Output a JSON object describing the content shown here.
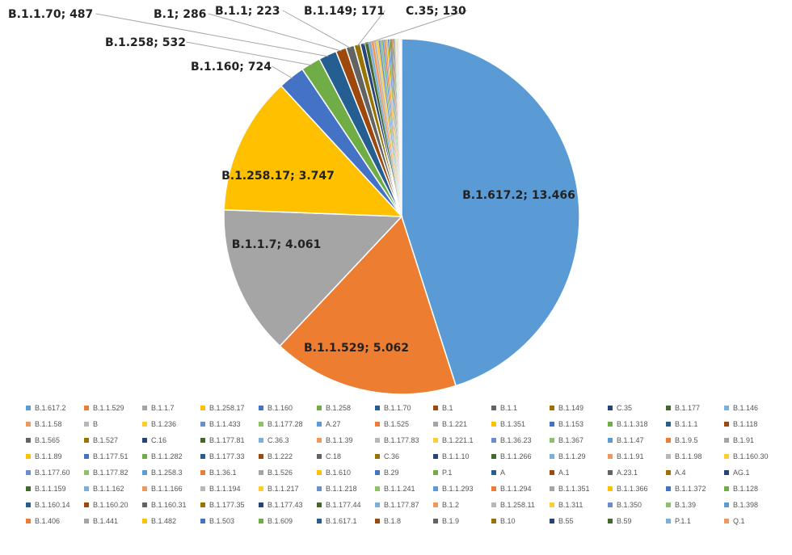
{
  "chart_data": {
    "type": "pie",
    "title": "",
    "labeled_slices": [
      {
        "name": "B.1.617.2",
        "value": 13466,
        "label": "B.1.617.2; 13.466"
      },
      {
        "name": "B.1.1.529",
        "value": 5062,
        "label": "B.1.1.529; 5.062"
      },
      {
        "name": "B.1.1.7",
        "value": 4061,
        "label": "B.1.1.7; 4.061"
      },
      {
        "name": "B.1.258.17",
        "value": 3747,
        "label": "B.1.258.17; 3.747"
      },
      {
        "name": "B.1.160",
        "value": 724,
        "label": "B.1.160; 724"
      },
      {
        "name": "B.1.258",
        "value": 532,
        "label": "B.1.258; 532"
      },
      {
        "name": "B.1.1.70",
        "value": 487,
        "label": "B.1.1.70; 487"
      },
      {
        "name": "B.1",
        "value": 286,
        "label": "B.1; 286"
      },
      {
        "name": "B.1.1",
        "value": 223,
        "label": "B.1.1; 223"
      },
      {
        "name": "B.1.149",
        "value": 171,
        "label": "B.1.149; 171"
      },
      {
        "name": "C.35",
        "value": 130,
        "label": "C.35; 130"
      }
    ],
    "legend_entries": [
      "B.1.617.2",
      "B.1.1.529",
      "B.1.1.7",
      "B.1.258.17",
      "B.1.160",
      "B.1.258",
      "B.1.1.70",
      "B.1",
      "B.1.1",
      "B.1.149",
      "C.35",
      "B.1.177",
      "B.1.146",
      "B.1.1.58",
      "B",
      "B.1.236",
      "B.1.1.433",
      "B.1.177.28",
      "A.27",
      "B.1.525",
      "B.1.221",
      "B.1.351",
      "B.1.153",
      "B.1.1.318",
      "B.1.1.1",
      "B.1.118",
      "B.1.565",
      "B.1.527",
      "C.16",
      "B.1.177.81",
      "C.36.3",
      "B.1.1.39",
      "B.1.177.83",
      "B.1.221.1",
      "B.1.36.23",
      "B.1.367",
      "B.1.1.47",
      "B.1.9.5",
      "B.1.91",
      "B.1.1.89",
      "B.1.177.51",
      "B.1.1.282",
      "B.1.177.33",
      "B.1.222",
      "C.18",
      "C.36",
      "B.1.1.10",
      "B.1.1.266",
      "B.1.1.29",
      "B.1.1.91",
      "B.1.1.98",
      "B.1.160.30",
      "B.1.177.60",
      "B.1.177.82",
      "B.1.258.3",
      "B.1.36.1",
      "B.1.526",
      "B.1.610",
      "B.29",
      "P.1",
      "A",
      "A.1",
      "A.23.1",
      "A.4",
      "AG.1",
      "B.1.1.159",
      "B.1.1.162",
      "B.1.1.166",
      "B.1.1.194",
      "B.1.1.217",
      "B.1.1.218",
      "B.1.1.241",
      "B.1.1.293",
      "B.1.1.294",
      "B.1.1.351",
      "B.1.1.366",
      "B.1.1.372",
      "B.1.128",
      "B.1.160.14",
      "B.1.160.20",
      "B.1.160.31",
      "B.1.177.35",
      "B.1.177.43",
      "B.1.177.44",
      "B.1.177.87",
      "B.1.2",
      "B.1.258.11",
      "B.1.311",
      "B.1.350",
      "B.1.39",
      "B.1.398",
      "B.1.406",
      "B.1.441",
      "B.1.482",
      "B.1.503",
      "B.1.609",
      "B.1.617.1",
      "B.1.8",
      "B.1.9",
      "B.10",
      "B.55",
      "B.59",
      "P.1.1",
      "Q.1"
    ],
    "palette": [
      "#5b9bd5",
      "#ed7d31",
      "#a5a5a5",
      "#ffc000",
      "#4472c4",
      "#70ad47",
      "#255e91",
      "#9e480e",
      "#636363",
      "#997300",
      "#264478",
      "#43682b",
      "#7cafdd",
      "#f1975a",
      "#b7b7b7",
      "#ffcd33",
      "#698ed0",
      "#8cc168"
    ],
    "unlabeled_small_values": [
      90,
      80,
      72,
      65,
      58,
      52,
      47,
      43,
      40,
      37,
      34,
      31,
      28,
      26,
      24,
      22,
      20,
      18,
      16,
      15,
      14,
      13,
      12,
      11,
      10,
      9,
      8,
      7,
      6,
      5,
      5,
      4,
      4,
      3,
      3,
      3,
      2,
      2,
      2,
      2,
      1,
      1,
      1,
      1,
      1,
      1,
      1,
      1,
      1,
      1,
      1,
      1,
      1,
      1,
      1,
      1,
      1,
      1,
      1,
      1,
      1,
      1,
      1,
      1,
      1,
      1,
      1,
      1,
      1,
      1,
      1,
      1,
      1,
      1,
      1,
      1,
      1,
      1,
      1,
      1,
      1,
      1,
      1,
      1,
      1,
      1,
      1,
      1
    ],
    "legend_position": "bottom"
  }
}
